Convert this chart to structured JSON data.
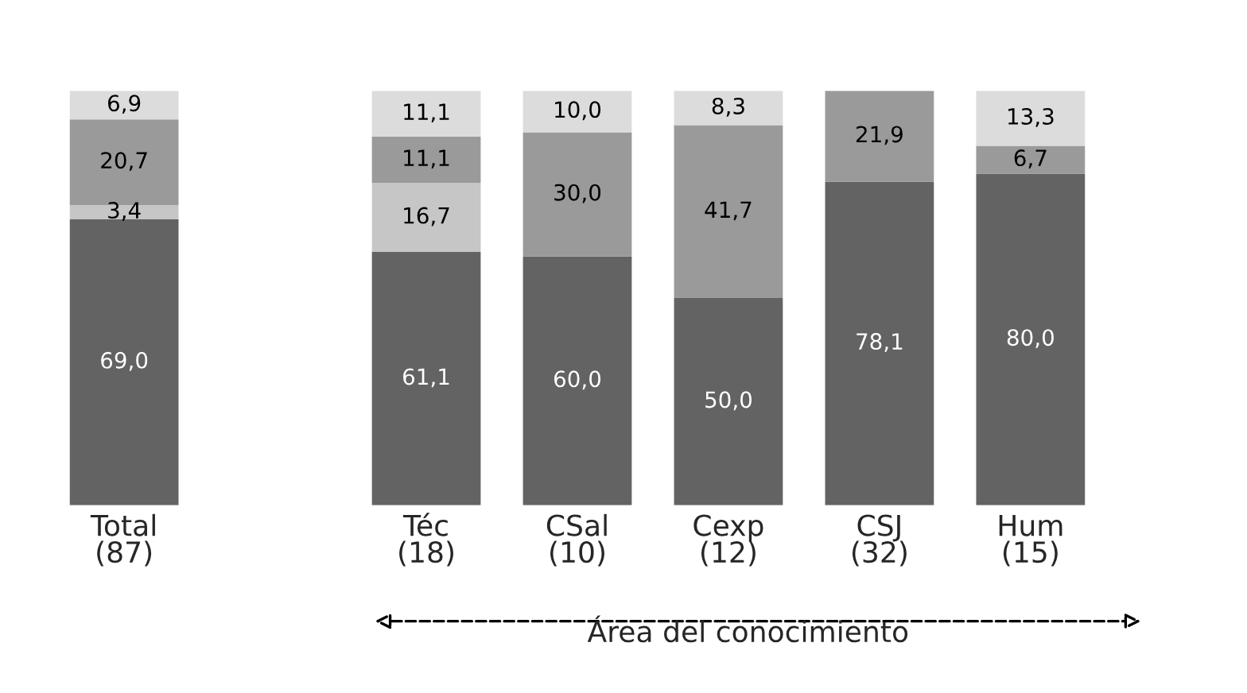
{
  "chart_data": {
    "type": "bar",
    "stacked": true,
    "categories": [
      "Total\n(87)",
      null,
      "Téc\n(18)",
      "CSal\n(10)",
      "Cexp\n(12)",
      "CSJ\n(32)",
      "Hum\n(15)"
    ],
    "series": [
      {
        "color": "#636363",
        "values": [
          69.0,
          null,
          61.1,
          60.0,
          50.0,
          78.1,
          80.0
        ],
        "value_labels": [
          "69,0",
          null,
          "61,1",
          "60,0",
          "50,0",
          "78,1",
          "80,0"
        ]
      },
      {
        "color": "#c6c6c6",
        "values": [
          3.4,
          null,
          16.7,
          null,
          null,
          null,
          null
        ],
        "value_labels": [
          "3,4",
          null,
          "16,7",
          null,
          null,
          null,
          null
        ]
      },
      {
        "color": "#9a9a9a",
        "values": [
          20.7,
          null,
          11.1,
          30.0,
          41.7,
          21.9,
          6.7
        ],
        "value_labels": [
          "20,7",
          null,
          "11,1",
          "30,0",
          "41,7",
          "21,9",
          "6,7"
        ]
      },
      {
        "color": "#dcdcdc",
        "values": [
          6.9,
          null,
          11.1,
          10.0,
          8.3,
          null,
          13.3
        ],
        "value_labels": [
          "6,9",
          null,
          "11,1",
          "10,0",
          "8,3",
          null,
          "13,3"
        ]
      }
    ],
    "annotations": [
      "Área del conocimiento"
    ],
    "grid": false,
    "legend": false
  }
}
